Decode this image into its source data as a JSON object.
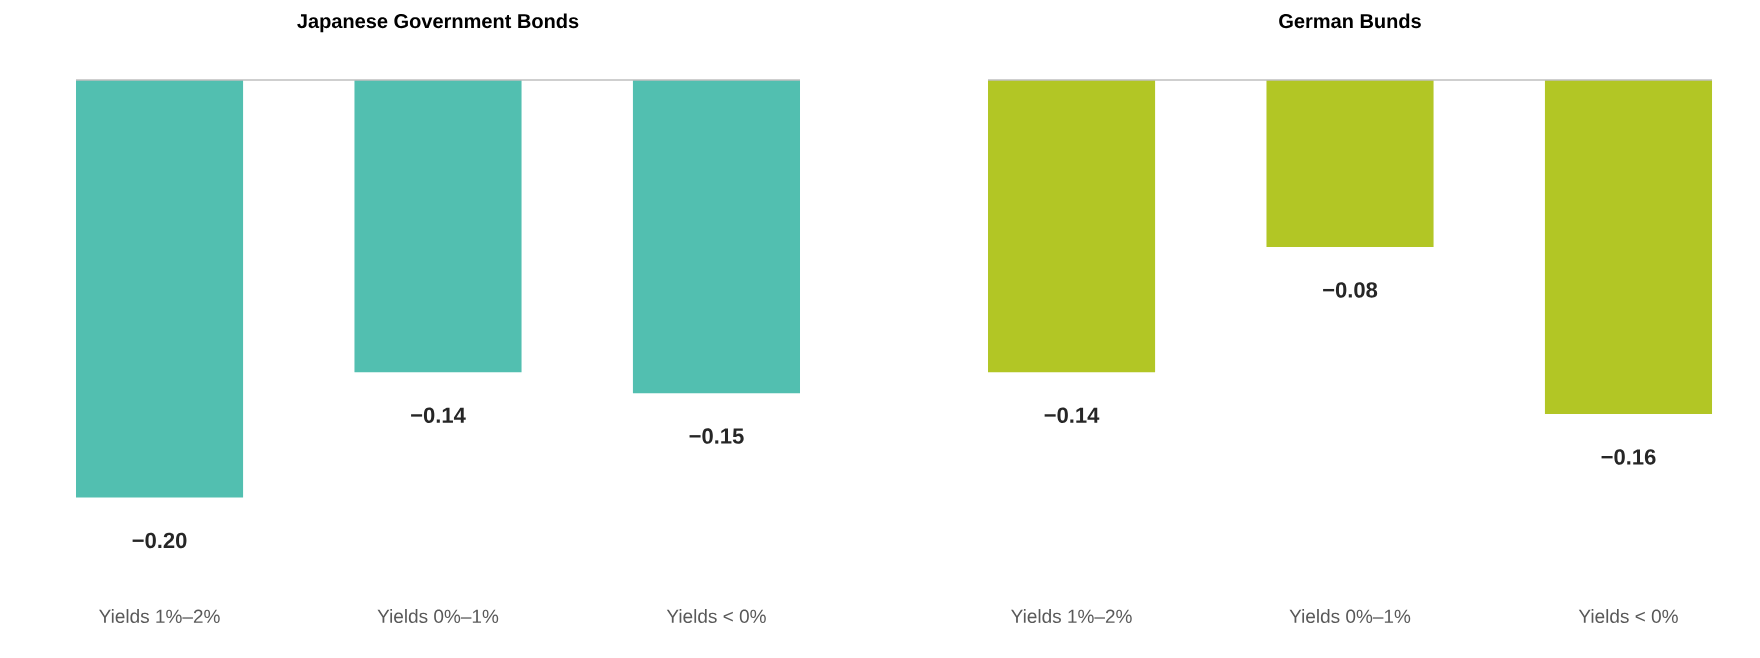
{
  "chart_data": [
    {
      "type": "bar",
      "title": "Japanese Government Bonds",
      "categories": [
        "Yields 1%–2%",
        "Yields 0%–1%",
        "Yields < 0%"
      ],
      "values": [
        -0.2,
        -0.14,
        -0.15
      ],
      "value_labels": [
        "−0.20",
        "−0.14",
        "−0.15"
      ],
      "color": "#52bfb0"
    },
    {
      "type": "bar",
      "title": "German Bunds",
      "categories": [
        "Yields 1%–2%",
        "Yields 0%–1%",
        "Yields < 0%"
      ],
      "values": [
        -0.14,
        -0.08,
        -0.16
      ],
      "value_labels": [
        "−0.14",
        "−0.08",
        "−0.16"
      ],
      "color": "#b2c625"
    }
  ]
}
